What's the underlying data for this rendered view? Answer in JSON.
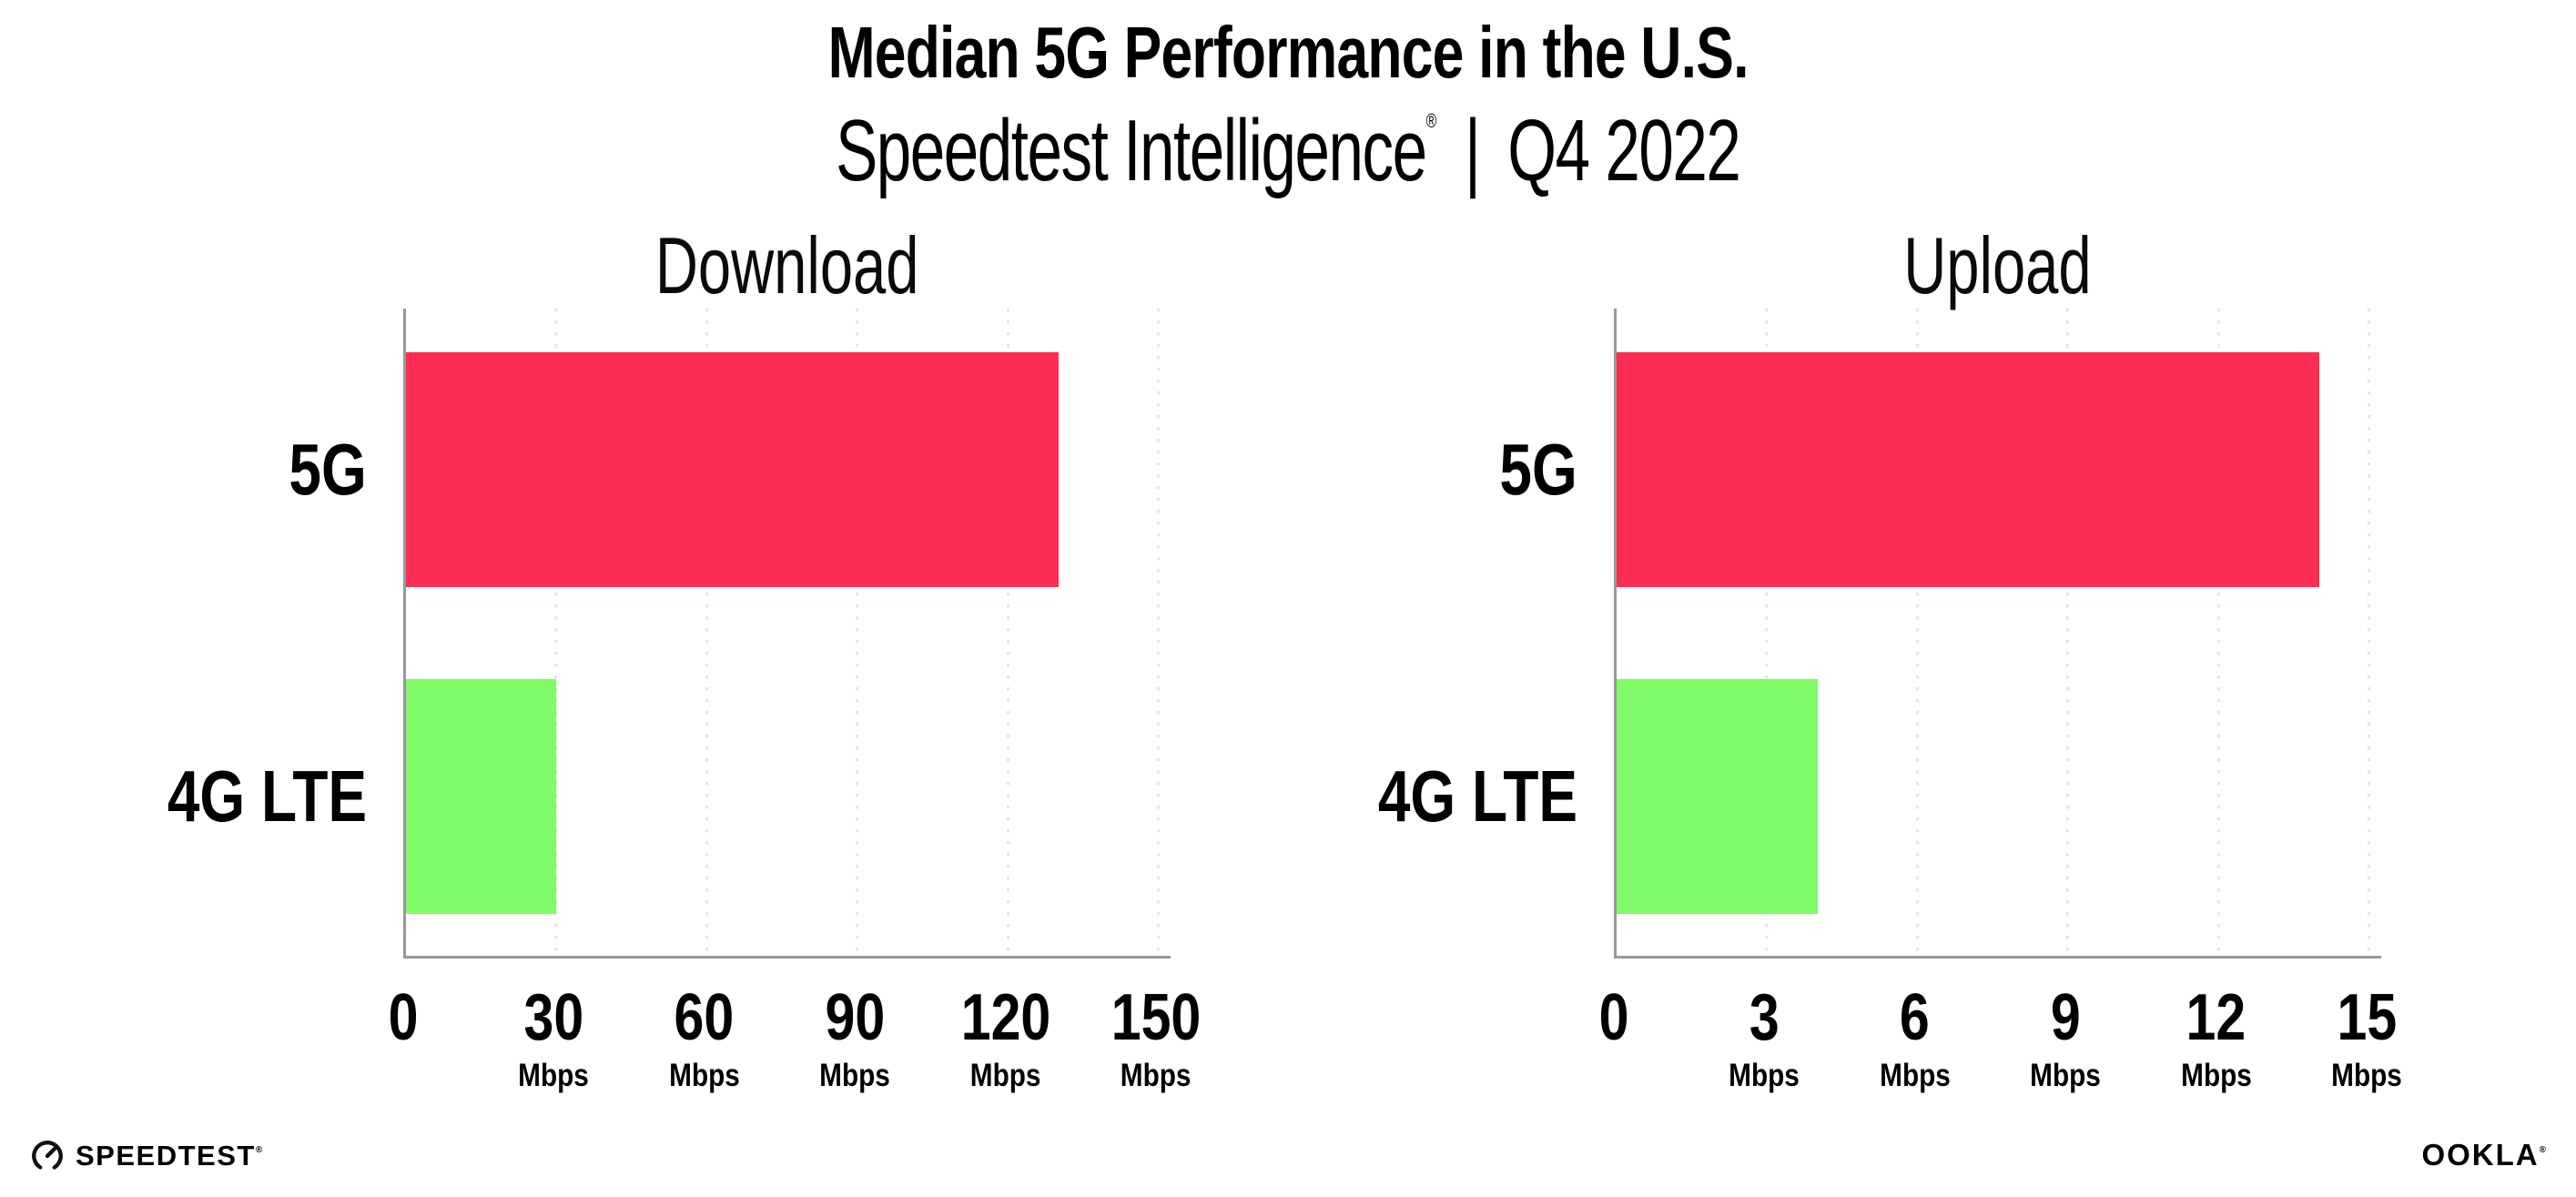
{
  "header": {
    "title": "Median 5G Performance in the U.S.",
    "subtitle_brand": "Speedtest Intelligence",
    "subtitle_mark": "®",
    "separator": "|",
    "period": "Q4 2022"
  },
  "chart_data": [
    {
      "type": "bar",
      "orientation": "horizontal",
      "title": "Download",
      "categories": [
        "5G",
        "4G LTE"
      ],
      "values": [
        130,
        30
      ],
      "unit": "Mbps",
      "xlabel": "",
      "ylabel": "",
      "xlim": [
        0,
        150
      ],
      "xticks": [
        0,
        30,
        60,
        90,
        120,
        150
      ],
      "grid": "vertical-dotted",
      "legend": "none",
      "bar_colors": [
        "#fc2d55",
        "#80fa66"
      ]
    },
    {
      "type": "bar",
      "orientation": "horizontal",
      "title": "Upload",
      "categories": [
        "5G",
        "4G LTE"
      ],
      "values": [
        14,
        4
      ],
      "unit": "Mbps",
      "xlabel": "",
      "ylabel": "",
      "xlim": [
        0,
        15
      ],
      "xticks": [
        0,
        3,
        6,
        9,
        12,
        15
      ],
      "grid": "vertical-dotted",
      "legend": "none",
      "bar_colors": [
        "#fc2d55",
        "#80fa66"
      ]
    }
  ],
  "colors": {
    "bar_5g": "#fc2d55",
    "bar_4g_lte": "#80fa66",
    "gridline": "#e4e4ee",
    "axis": "#97979c",
    "text": "#000000",
    "background": "#ffffff"
  },
  "footer": {
    "speedtest_label": "SPEEDTEST",
    "speedtest_mark": "®",
    "ookla_label": "OOKLA",
    "ookla_mark": "®"
  }
}
